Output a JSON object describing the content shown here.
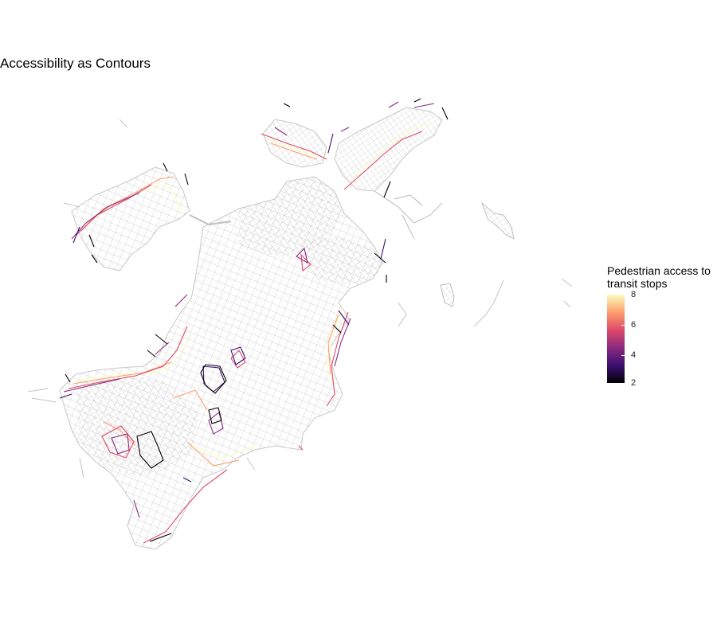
{
  "map": {
    "title": "Accessibility as Contours",
    "palette": [
      "#000004",
      "#3b0f70",
      "#8c2981",
      "#de4968",
      "#fe9f6d",
      "#fcfdbf"
    ],
    "street_color": "#bdbdbd",
    "legend": {
      "title_line1": "Pedestrian access to",
      "title_line2": "transit stops",
      "ticks": [
        "8",
        "6",
        "4",
        "2"
      ],
      "range": [
        2,
        8
      ]
    }
  }
}
